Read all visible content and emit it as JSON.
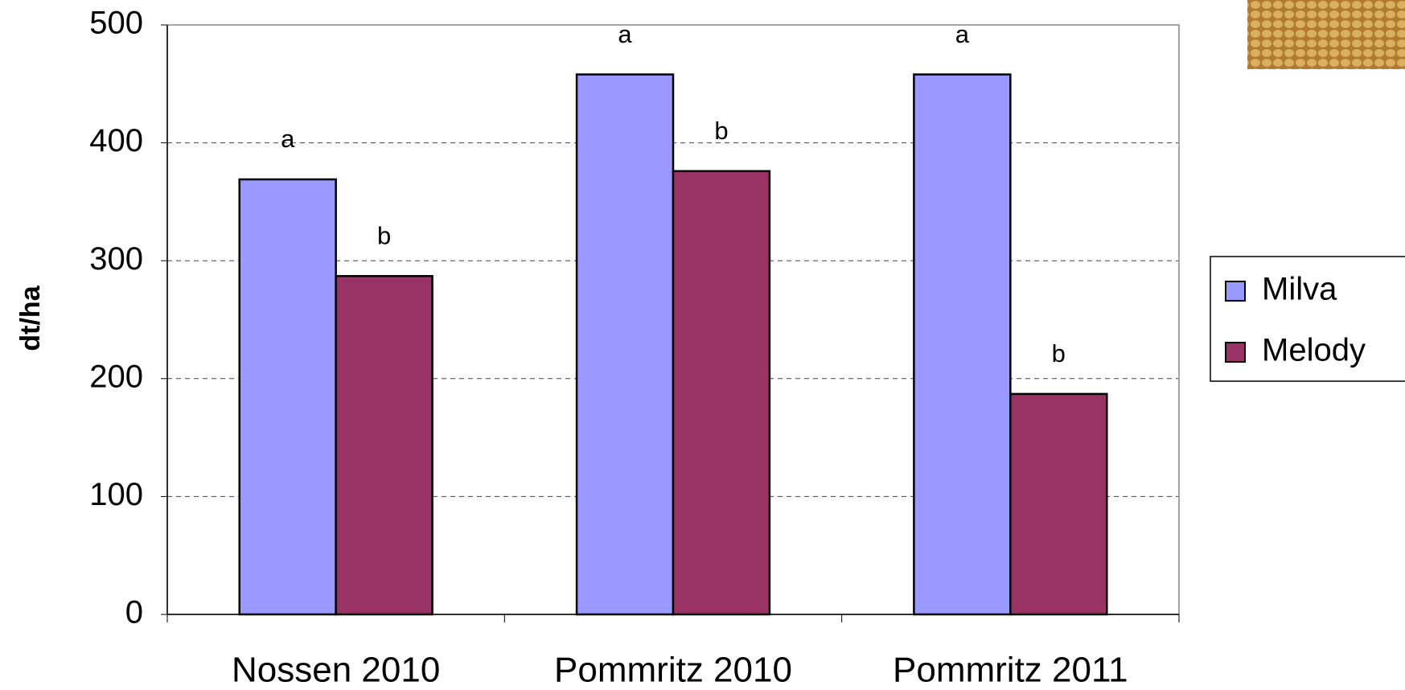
{
  "chart_data": {
    "type": "bar",
    "y_label": "dt/ha",
    "categories": [
      "Nossen 2010",
      "Pommritz 2010",
      "Pommritz 2011"
    ],
    "series": [
      {
        "name": "Milva",
        "color": "#9999ff",
        "values": [
          369,
          458,
          458
        ],
        "letters": [
          "a",
          "a",
          "a"
        ]
      },
      {
        "name": "Melody",
        "color": "#993366",
        "values": [
          287,
          376,
          187
        ],
        "letters": [
          "b",
          "b",
          "b"
        ]
      }
    ],
    "ylim": [
      0,
      500
    ],
    "yticks": [
      0,
      100,
      200,
      300,
      400,
      500
    ],
    "grid": true
  }
}
